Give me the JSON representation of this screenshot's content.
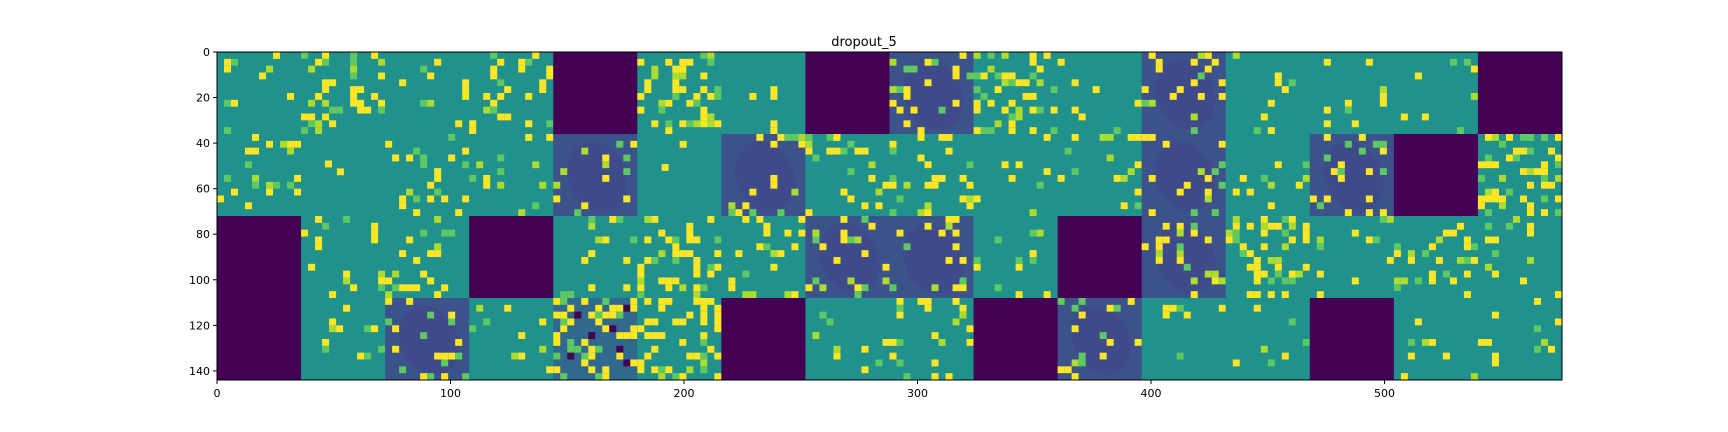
{
  "chart_data": {
    "type": "heatmap",
    "title": "dropout_5",
    "xlabel": "",
    "ylabel": "",
    "xlim": [
      0,
      576
    ],
    "ylim": [
      144,
      0
    ],
    "x_ticks": [
      0,
      100,
      200,
      300,
      400,
      500
    ],
    "y_ticks": [
      0,
      20,
      40,
      60,
      80,
      100,
      120,
      140
    ],
    "grid": false,
    "colormap": "viridis",
    "colors": {
      "dark": "#440154",
      "low": "#3b528b",
      "mid": "#21918c",
      "high": "#5ec962",
      "bright": "#fde725"
    },
    "tile_grid": {
      "rows": 4,
      "cols": 16,
      "tile_size": 36,
      "tiles": [
        [
          "sparse",
          "moderate",
          "sparse",
          "moderate",
          "dead",
          "dense",
          "sparse",
          "dead",
          "leaf",
          "dense",
          "sparse",
          "leaf",
          "sparse",
          "sparse",
          "sparse",
          "dead"
        ],
        [
          "moderate",
          "flat",
          "moderate",
          "sparse",
          "leaf",
          "flat",
          "leaf",
          "moderate",
          "moderate",
          "sparse",
          "sparse",
          "leaf",
          "sparse",
          "leaf",
          "dead",
          "dense"
        ],
        [
          "dead",
          "moderate",
          "moderate",
          "dead",
          "sparse",
          "dense",
          "moderate",
          "leaf",
          "leaf",
          "sparse",
          "dead",
          "leaf",
          "dense",
          "sparse",
          "moderate",
          "sparse"
        ],
        [
          "dead",
          "sparse",
          "leaf",
          "sparse",
          "noisy",
          "dense",
          "dead",
          "sparse",
          "moderate",
          "dead",
          "leaf",
          "sparse",
          "sparse",
          "dead",
          "sparse",
          "sparse"
        ]
      ]
    }
  }
}
